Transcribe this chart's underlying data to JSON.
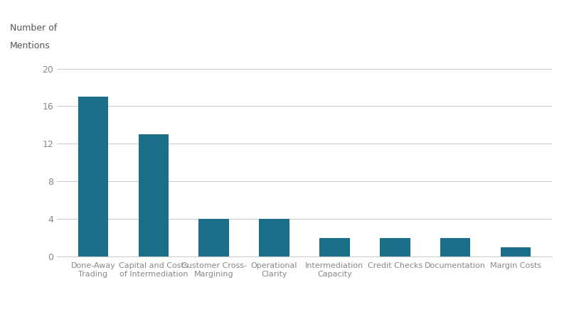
{
  "categories": [
    "Done-Away\nTrading",
    "Capital and Costs\nof Intermediation",
    "Customer Cross-\nMargining",
    "Operational\nClarity",
    "Intermediation\nCapacity",
    "Credit Checks",
    "Documentation",
    "Margin Costs"
  ],
  "values": [
    17,
    13,
    4,
    4,
    2,
    2,
    2,
    1
  ],
  "bar_color": "#1a6e87",
  "ylabel_line1": "Number of",
  "ylabel_line2": "Mentions",
  "ylim": [
    0,
    21
  ],
  "yticks": [
    0,
    4,
    8,
    12,
    16,
    20
  ],
  "background_color": "#ffffff",
  "grid_color": "#cccccc",
  "tick_label_color": "#888888",
  "ylabel_color": "#555555",
  "bar_width": 0.5
}
